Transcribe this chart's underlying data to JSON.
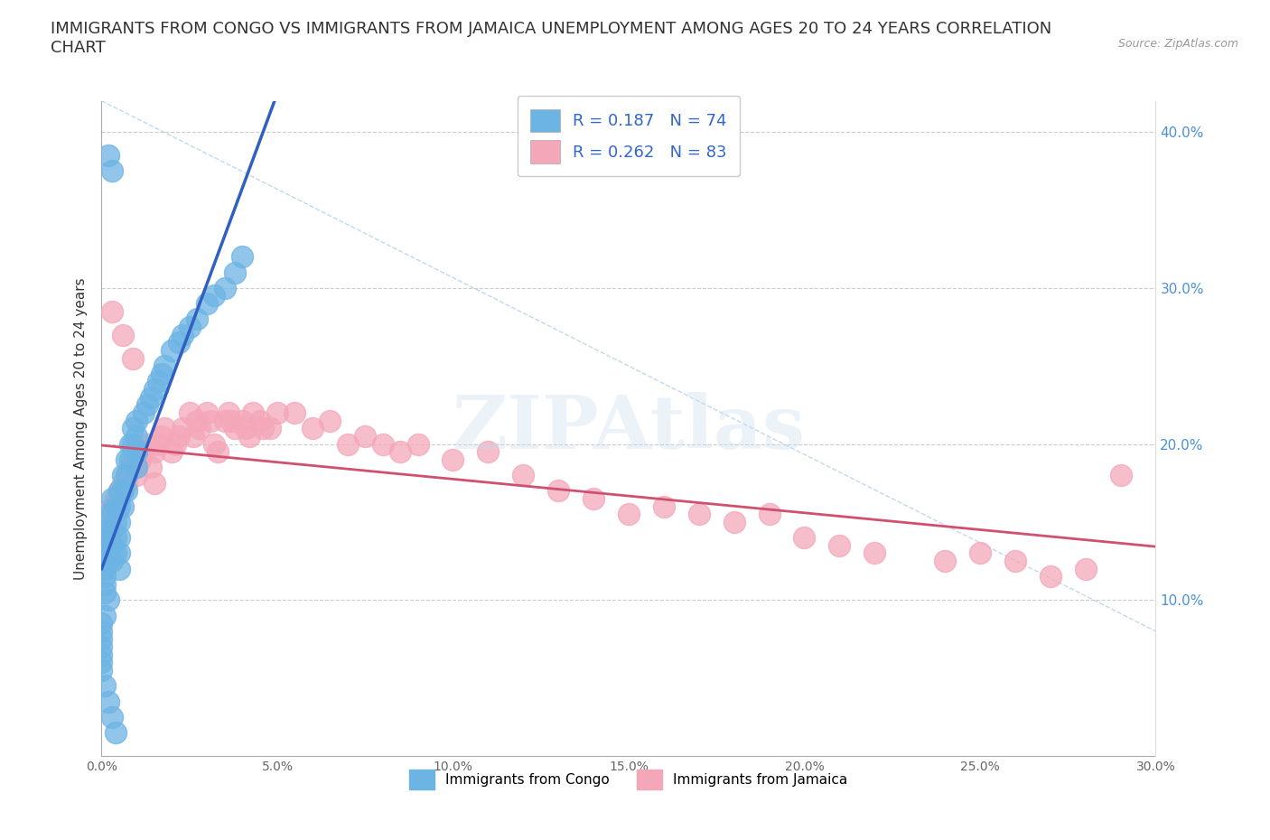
{
  "title": "IMMIGRANTS FROM CONGO VS IMMIGRANTS FROM JAMAICA UNEMPLOYMENT AMONG AGES 20 TO 24 YEARS CORRELATION\nCHART",
  "source": "Source: ZipAtlas.com",
  "ylabel": "Unemployment Among Ages 20 to 24 years",
  "xlim": [
    0.0,
    0.3
  ],
  "ylim": [
    0.0,
    0.42
  ],
  "xtick_vals": [
    0.0,
    0.05,
    0.1,
    0.15,
    0.2,
    0.25,
    0.3
  ],
  "xtick_labels": [
    "0.0%",
    "5.0%",
    "10.0%",
    "15.0%",
    "20.0%",
    "25.0%",
    "30.0%"
  ],
  "ytick_positions": [
    0.1,
    0.2,
    0.3,
    0.4
  ],
  "ytick_labels": [
    "10.0%",
    "20.0%",
    "30.0%",
    "40.0%"
  ],
  "congo_color": "#6cb4e4",
  "congo_edge_color": "#4a90d9",
  "jamaica_color": "#f4a7b9",
  "jamaica_edge_color": "#e06080",
  "congo_line_color": "#3060c0",
  "jamaica_line_color": "#d05070",
  "diag_line_color": "#a8c8e8",
  "congo_R": 0.187,
  "congo_N": 74,
  "jamaica_R": 0.262,
  "jamaica_N": 83,
  "legend_label_congo": "Immigrants from Congo",
  "legend_label_jamaica": "Immigrants from Jamaica",
  "watermark": "ZIPAtlas",
  "background_color": "#ffffff",
  "title_fontsize": 13,
  "axis_label_fontsize": 11,
  "tick_fontsize": 10,
  "right_tick_color": "#4a90d9",
  "congo_x": [
    0.002,
    0.003,
    0.001,
    0.002,
    0.001,
    0.001,
    0.002,
    0.001,
    0.0,
    0.0,
    0.0,
    0.0,
    0.0,
    0.0,
    0.0,
    0.001,
    0.001,
    0.001,
    0.001,
    0.001,
    0.002,
    0.002,
    0.002,
    0.002,
    0.003,
    0.003,
    0.003,
    0.003,
    0.003,
    0.004,
    0.004,
    0.004,
    0.004,
    0.005,
    0.005,
    0.005,
    0.005,
    0.005,
    0.005,
    0.006,
    0.006,
    0.006,
    0.007,
    0.007,
    0.007,
    0.008,
    0.008,
    0.009,
    0.009,
    0.01,
    0.01,
    0.01,
    0.01,
    0.012,
    0.013,
    0.014,
    0.015,
    0.016,
    0.017,
    0.018,
    0.02,
    0.022,
    0.023,
    0.025,
    0.027,
    0.03,
    0.032,
    0.035,
    0.038,
    0.04,
    0.001,
    0.002,
    0.003,
    0.004
  ],
  "congo_y": [
    0.385,
    0.375,
    0.14,
    0.13,
    0.12,
    0.11,
    0.1,
    0.09,
    0.085,
    0.08,
    0.075,
    0.07,
    0.065,
    0.06,
    0.055,
    0.145,
    0.135,
    0.125,
    0.115,
    0.105,
    0.155,
    0.145,
    0.135,
    0.125,
    0.165,
    0.155,
    0.145,
    0.135,
    0.125,
    0.16,
    0.15,
    0.14,
    0.13,
    0.17,
    0.16,
    0.15,
    0.14,
    0.13,
    0.12,
    0.18,
    0.17,
    0.16,
    0.19,
    0.18,
    0.17,
    0.2,
    0.19,
    0.21,
    0.2,
    0.215,
    0.205,
    0.195,
    0.185,
    0.22,
    0.225,
    0.23,
    0.235,
    0.24,
    0.245,
    0.25,
    0.26,
    0.265,
    0.27,
    0.275,
    0.28,
    0.29,
    0.295,
    0.3,
    0.31,
    0.32,
    0.045,
    0.035,
    0.025,
    0.015
  ],
  "jamaica_x": [
    0.001,
    0.001,
    0.001,
    0.002,
    0.002,
    0.002,
    0.003,
    0.003,
    0.004,
    0.004,
    0.005,
    0.005,
    0.006,
    0.006,
    0.007,
    0.007,
    0.008,
    0.009,
    0.01,
    0.01,
    0.011,
    0.012,
    0.013,
    0.014,
    0.015,
    0.015,
    0.016,
    0.017,
    0.018,
    0.02,
    0.021,
    0.022,
    0.023,
    0.025,
    0.026,
    0.027,
    0.028,
    0.03,
    0.031,
    0.032,
    0.033,
    0.035,
    0.036,
    0.037,
    0.038,
    0.04,
    0.041,
    0.042,
    0.043,
    0.045,
    0.046,
    0.048,
    0.05,
    0.055,
    0.06,
    0.065,
    0.07,
    0.075,
    0.08,
    0.085,
    0.09,
    0.1,
    0.11,
    0.12,
    0.13,
    0.14,
    0.15,
    0.16,
    0.17,
    0.18,
    0.19,
    0.2,
    0.21,
    0.22,
    0.24,
    0.25,
    0.26,
    0.27,
    0.28,
    0.29,
    0.003,
    0.006,
    0.009
  ],
  "jamaica_y": [
    0.14,
    0.13,
    0.12,
    0.15,
    0.145,
    0.14,
    0.16,
    0.155,
    0.165,
    0.16,
    0.17,
    0.165,
    0.175,
    0.17,
    0.18,
    0.175,
    0.185,
    0.19,
    0.185,
    0.18,
    0.19,
    0.195,
    0.2,
    0.185,
    0.175,
    0.195,
    0.2,
    0.205,
    0.21,
    0.195,
    0.2,
    0.205,
    0.21,
    0.22,
    0.205,
    0.215,
    0.21,
    0.22,
    0.215,
    0.2,
    0.195,
    0.215,
    0.22,
    0.215,
    0.21,
    0.215,
    0.21,
    0.205,
    0.22,
    0.215,
    0.21,
    0.21,
    0.22,
    0.22,
    0.21,
    0.215,
    0.2,
    0.205,
    0.2,
    0.195,
    0.2,
    0.19,
    0.195,
    0.18,
    0.17,
    0.165,
    0.155,
    0.16,
    0.155,
    0.15,
    0.155,
    0.14,
    0.135,
    0.13,
    0.125,
    0.13,
    0.125,
    0.115,
    0.12,
    0.18,
    0.285,
    0.27,
    0.255
  ]
}
